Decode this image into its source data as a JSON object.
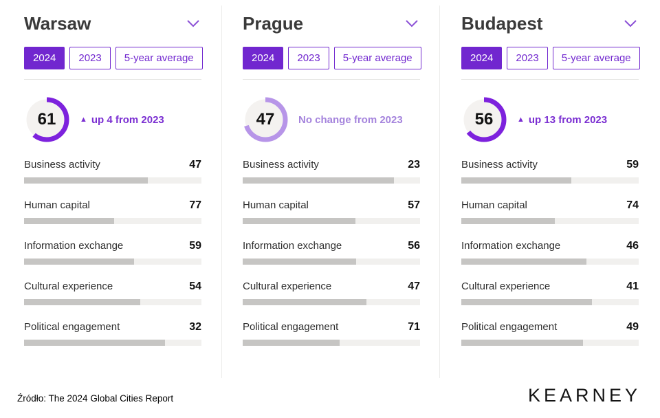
{
  "colors": {
    "accent_purple": "#7127cf",
    "arc_purple": "#7d22dd",
    "arc_light_purple": "#b795e8",
    "change_purple": "#7b2fd2",
    "change_light_purple": "#a584dd",
    "bar_fill_gray": "#c6c5c3",
    "bar_track_gray": "#f1f0ee",
    "gauge_disc_gray": "#f4f2f0"
  },
  "tabs": [
    {
      "label": "2024",
      "selected": true
    },
    {
      "label": "2023",
      "selected": false
    },
    {
      "label": "5-year average",
      "selected": false
    }
  ],
  "cities": [
    {
      "name": "Warsaw",
      "score": 61,
      "arc_pct": 60.9,
      "arc_color": "#7d22dd",
      "change_icon": "▲",
      "change_text": "up 4 from 2023",
      "change_color": "#7b2fd2",
      "metrics": [
        {
          "label": "Business activity",
          "value": 47,
          "bar_pct": 69.9
        },
        {
          "label": "Human capital",
          "value": 77,
          "bar_pct": 50.6
        },
        {
          "label": "Information exchange",
          "value": 59,
          "bar_pct": 62.2
        },
        {
          "label": "Cultural experience",
          "value": 54,
          "bar_pct": 65.4
        },
        {
          "label": "Political engagement",
          "value": 32,
          "bar_pct": 79.5
        }
      ]
    },
    {
      "name": "Prague",
      "score": 47,
      "arc_pct": 69.9,
      "arc_color": "#b795e8",
      "change_icon": "",
      "change_text": "No change from 2023",
      "change_color": "#a584dd",
      "metrics": [
        {
          "label": "Business activity",
          "value": 23,
          "bar_pct": 85.3
        },
        {
          "label": "Human capital",
          "value": 57,
          "bar_pct": 63.5
        },
        {
          "label": "Information exchange",
          "value": 56,
          "bar_pct": 64.1
        },
        {
          "label": "Cultural experience",
          "value": 47,
          "bar_pct": 69.9
        },
        {
          "label": "Political engagement",
          "value": 71,
          "bar_pct": 54.5
        }
      ]
    },
    {
      "name": "Budapest",
      "score": 56,
      "arc_pct": 64.1,
      "arc_color": "#7d22dd",
      "change_icon": "▲",
      "change_text": "up 13 from 2023",
      "change_color": "#7b2fd2",
      "metrics": [
        {
          "label": "Business activity",
          "value": 59,
          "bar_pct": 62.2
        },
        {
          "label": "Human capital",
          "value": 74,
          "bar_pct": 52.6
        },
        {
          "label": "Information exchange",
          "value": 46,
          "bar_pct": 70.5
        },
        {
          "label": "Cultural experience",
          "value": 41,
          "bar_pct": 73.7
        },
        {
          "label": "Political engagement",
          "value": 49,
          "bar_pct": 68.6
        }
      ]
    }
  ],
  "footer": {
    "source": "Źródło: The 2024 Global Cities Report",
    "brand": "KEARNEY"
  },
  "chart_data": [
    {
      "type": "bar",
      "title": "Warsaw",
      "overall_score": 61,
      "overall_change": "up 4 from 2023",
      "donut_arc_pct": 60.9,
      "categories": [
        "Business activity",
        "Human capital",
        "Information exchange",
        "Cultural experience",
        "Political engagement"
      ],
      "values": [
        47,
        77,
        59,
        54,
        32
      ],
      "bar_lengths_pct": [
        69.9,
        50.6,
        62.2,
        65.4,
        79.5
      ],
      "selected_period": "2024",
      "period_options": [
        "2024",
        "2023",
        "5-year average"
      ]
    },
    {
      "type": "bar",
      "title": "Prague",
      "overall_score": 47,
      "overall_change": "No change from 2023",
      "donut_arc_pct": 69.9,
      "categories": [
        "Business activity",
        "Human capital",
        "Information exchange",
        "Cultural experience",
        "Political engagement"
      ],
      "values": [
        23,
        57,
        56,
        47,
        71
      ],
      "bar_lengths_pct": [
        85.3,
        63.5,
        64.1,
        69.9,
        54.5
      ],
      "selected_period": "2024",
      "period_options": [
        "2024",
        "2023",
        "5-year average"
      ]
    },
    {
      "type": "bar",
      "title": "Budapest",
      "overall_score": 56,
      "overall_change": "up 13 from 2023",
      "donut_arc_pct": 64.1,
      "categories": [
        "Business activity",
        "Human capital",
        "Information exchange",
        "Cultural experience",
        "Political engagement"
      ],
      "values": [
        59,
        74,
        46,
        41,
        49
      ],
      "bar_lengths_pct": [
        62.2,
        52.6,
        70.5,
        73.7,
        68.6
      ],
      "selected_period": "2024",
      "period_options": [
        "2024",
        "2023",
        "5-year average"
      ]
    }
  ]
}
